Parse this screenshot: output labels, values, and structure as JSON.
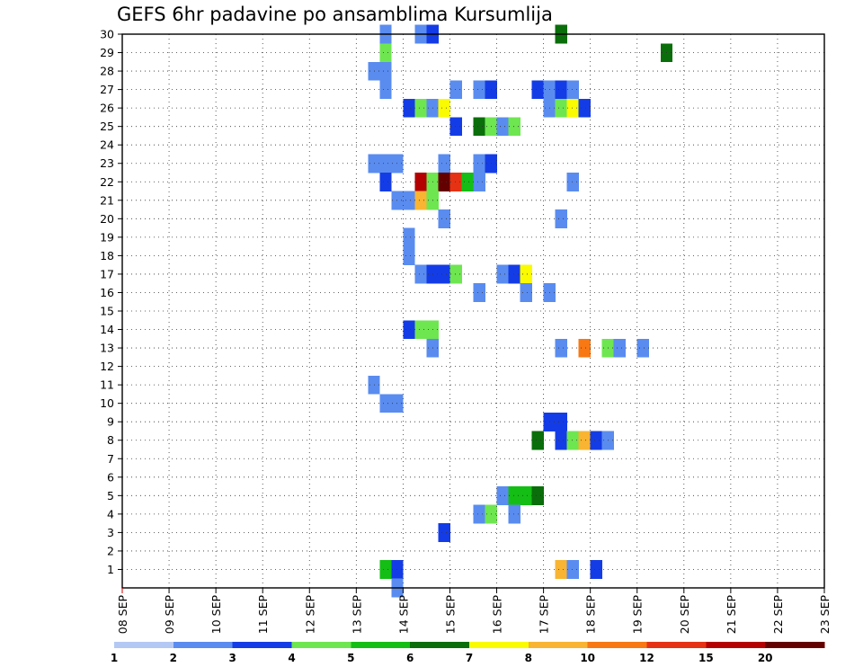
{
  "chart_data": {
    "type": "heatmap",
    "title": "GEFS 6hr padavine po ansamblima Kursumlija",
    "xlabel": "",
    "ylabel": "",
    "x_ticks": [
      "08 SEP",
      "09 SEP",
      "10 SEP",
      "11 SEP",
      "12 SEP",
      "13 SEP",
      "14 SEP",
      "15 SEP",
      "16 SEP",
      "17 SEP",
      "18 SEP",
      "19 SEP",
      "20 SEP",
      "21 SEP",
      "22 SEP",
      "23 SEP"
    ],
    "xlim": [
      0,
      60
    ],
    "x_step_hours": 6,
    "y_ticks": [
      1,
      2,
      3,
      4,
      5,
      6,
      7,
      8,
      9,
      10,
      11,
      12,
      13,
      14,
      15,
      16,
      17,
      18,
      19,
      20,
      21,
      22,
      23,
      24,
      25,
      26,
      27,
      28,
      29,
      30
    ],
    "ylim": [
      0,
      30
    ],
    "grid": true,
    "legend": {
      "placement": "bottom",
      "labels": [
        "1",
        "2",
        "3",
        "4",
        "5",
        "6",
        "7",
        "8",
        "10",
        "12",
        "15",
        "20"
      ],
      "colors": [
        "#b4c8f4",
        "#5a8cf0",
        "#143ce6",
        "#6ee650",
        "#14be14",
        "#0a6e0a",
        "#fafa00",
        "#f8b432",
        "#f87814",
        "#e63214",
        "#b40000",
        "#640000"
      ]
    },
    "cells": [
      [
        30,
        22,
        1
      ],
      [
        30,
        25,
        1
      ],
      [
        30,
        26,
        2
      ],
      [
        30,
        37,
        5
      ],
      [
        29,
        22,
        3
      ],
      [
        29,
        46,
        5
      ],
      [
        28,
        21,
        1
      ],
      [
        28,
        22,
        1
      ],
      [
        27,
        22,
        1
      ],
      [
        27,
        28,
        1
      ],
      [
        27,
        30,
        1
      ],
      [
        27,
        31,
        2
      ],
      [
        27,
        35,
        2
      ],
      [
        27,
        36,
        1
      ],
      [
        27,
        37,
        2
      ],
      [
        27,
        38,
        1
      ],
      [
        26,
        24,
        2
      ],
      [
        26,
        25,
        3
      ],
      [
        26,
        26,
        1
      ],
      [
        26,
        27,
        6
      ],
      [
        26,
        36,
        1
      ],
      [
        26,
        37,
        3
      ],
      [
        26,
        38,
        6
      ],
      [
        26,
        39,
        2
      ],
      [
        25,
        28,
        2
      ],
      [
        25,
        30,
        5
      ],
      [
        25,
        31,
        3
      ],
      [
        25,
        32,
        1
      ],
      [
        25,
        33,
        3
      ],
      [
        23,
        21,
        1
      ],
      [
        23,
        22,
        1
      ],
      [
        23,
        23,
        1
      ],
      [
        23,
        27,
        1
      ],
      [
        23,
        30,
        1
      ],
      [
        23,
        31,
        2
      ],
      [
        22,
        22,
        2
      ],
      [
        22,
        25,
        10
      ],
      [
        22,
        26,
        3
      ],
      [
        22,
        27,
        11
      ],
      [
        22,
        28,
        9
      ],
      [
        22,
        29,
        4
      ],
      [
        22,
        30,
        1
      ],
      [
        22,
        38,
        1
      ],
      [
        21,
        23,
        1
      ],
      [
        21,
        24,
        1
      ],
      [
        21,
        25,
        7
      ],
      [
        21,
        26,
        3
      ],
      [
        20,
        27,
        1
      ],
      [
        20,
        37,
        1
      ],
      [
        19,
        24,
        1
      ],
      [
        18,
        24,
        1
      ],
      [
        17,
        25,
        1
      ],
      [
        17,
        26,
        2
      ],
      [
        17,
        27,
        2
      ],
      [
        17,
        28,
        3
      ],
      [
        17,
        32,
        1
      ],
      [
        17,
        33,
        2
      ],
      [
        17,
        34,
        6
      ],
      [
        16,
        30,
        1
      ],
      [
        16,
        34,
        1
      ],
      [
        16,
        36,
        1
      ],
      [
        14,
        24,
        2
      ],
      [
        14,
        25,
        3
      ],
      [
        14,
        26,
        3
      ],
      [
        13,
        26,
        1
      ],
      [
        13,
        37,
        1
      ],
      [
        13,
        39,
        8
      ],
      [
        13,
        41,
        3
      ],
      [
        13,
        42,
        1
      ],
      [
        13,
        44,
        1
      ],
      [
        11,
        21,
        1
      ],
      [
        10,
        22,
        1
      ],
      [
        10,
        23,
        1
      ],
      [
        9,
        36,
        2
      ],
      [
        9,
        37,
        2
      ],
      [
        8,
        35,
        5
      ],
      [
        8,
        37,
        2
      ],
      [
        8,
        38,
        3
      ],
      [
        8,
        39,
        7
      ],
      [
        8,
        40,
        2
      ],
      [
        8,
        41,
        1
      ],
      [
        5,
        32,
        1
      ],
      [
        5,
        33,
        4
      ],
      [
        5,
        34,
        4
      ],
      [
        5,
        35,
        5
      ],
      [
        4,
        30,
        1
      ],
      [
        4,
        31,
        3
      ],
      [
        4,
        33,
        1
      ],
      [
        3,
        27,
        2
      ],
      [
        1,
        22,
        4
      ],
      [
        1,
        23,
        2
      ],
      [
        1,
        37,
        7
      ],
      [
        1,
        38,
        1
      ],
      [
        1,
        40,
        2
      ],
      [
        0,
        23,
        1
      ]
    ]
  }
}
